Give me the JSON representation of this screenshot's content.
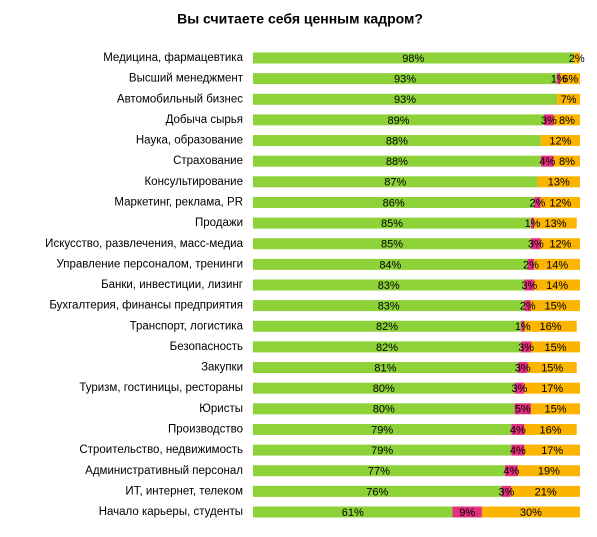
{
  "chart_data": {
    "type": "stacked-bar-horizontal",
    "title": "Вы считаете себя ценным кадром?",
    "xlim": [
      0,
      100
    ],
    "categories": [
      "Медицина, фармацевтика",
      "Высший менеджмент",
      "Автомобильный бизнес",
      "Добыча сырья",
      "Наука, образование",
      "Страхование",
      "Консультирование",
      "Маркетинг, реклама, PR",
      "Продажи",
      "Искусство, развлечения, масс-медиа",
      "Управление персоналом, тренинги",
      "Банки, инвестиции,  лизинг",
      "Бухгалтерия, финансы предприятия",
      "Транспорт, логистика",
      "Безопасность",
      "Закупки",
      "Туризм, гостиницы, рестораны",
      "Юристы",
      "Производство",
      "Строительство, недвижимость",
      "Административный персонал",
      "ИТ, интернет, телеком",
      "Начало карьеры, студенты"
    ],
    "series": [
      {
        "color": "#8ed23a",
        "values": [
          98,
          93,
          93,
          89,
          88,
          88,
          87,
          86,
          85,
          85,
          84,
          83,
          83,
          82,
          82,
          81,
          80,
          80,
          79,
          79,
          77,
          76,
          61
        ],
        "value_labels": [
          "98%",
          "93%",
          "93%",
          "89%",
          "88%",
          "88%",
          "87%",
          "86%",
          "85%",
          "85%",
          "84%",
          "83%",
          "83%",
          "82%",
          "82%",
          "81%",
          "80%",
          "80%",
          "79%",
          "79%",
          "77%",
          "76%",
          "61%"
        ]
      },
      {
        "color": "#e2307c",
        "values": [
          null,
          1,
          null,
          3,
          null,
          4,
          null,
          2,
          1,
          3,
          2,
          3,
          2,
          1,
          3,
          3,
          3,
          5,
          4,
          4,
          4,
          3,
          9
        ],
        "value_labels": [
          null,
          "1%",
          null,
          "3%",
          null,
          "4%",
          null,
          "2%",
          "1%",
          "3%",
          "2%",
          "3%",
          "2%",
          "1%",
          "3%",
          "3%",
          "3%",
          "5%",
          "4%",
          "4%",
          "4%",
          "3%",
          "9%"
        ]
      },
      {
        "color": "#fbb500",
        "values": [
          2,
          6,
          7,
          8,
          12,
          8,
          13,
          12,
          13,
          12,
          14,
          14,
          15,
          16,
          15,
          15,
          17,
          15,
          16,
          17,
          19,
          21,
          30
        ],
        "value_labels": [
          "2%",
          "6%",
          "7%",
          "8%",
          "12%",
          "8%",
          "13%",
          "12%",
          "13%",
          "12%",
          "14%",
          "14%",
          "15%",
          "16%",
          "15%",
          "15%",
          "17%",
          "15%",
          "16%",
          "17%",
          "19%",
          "21%",
          "30%"
        ]
      }
    ]
  }
}
